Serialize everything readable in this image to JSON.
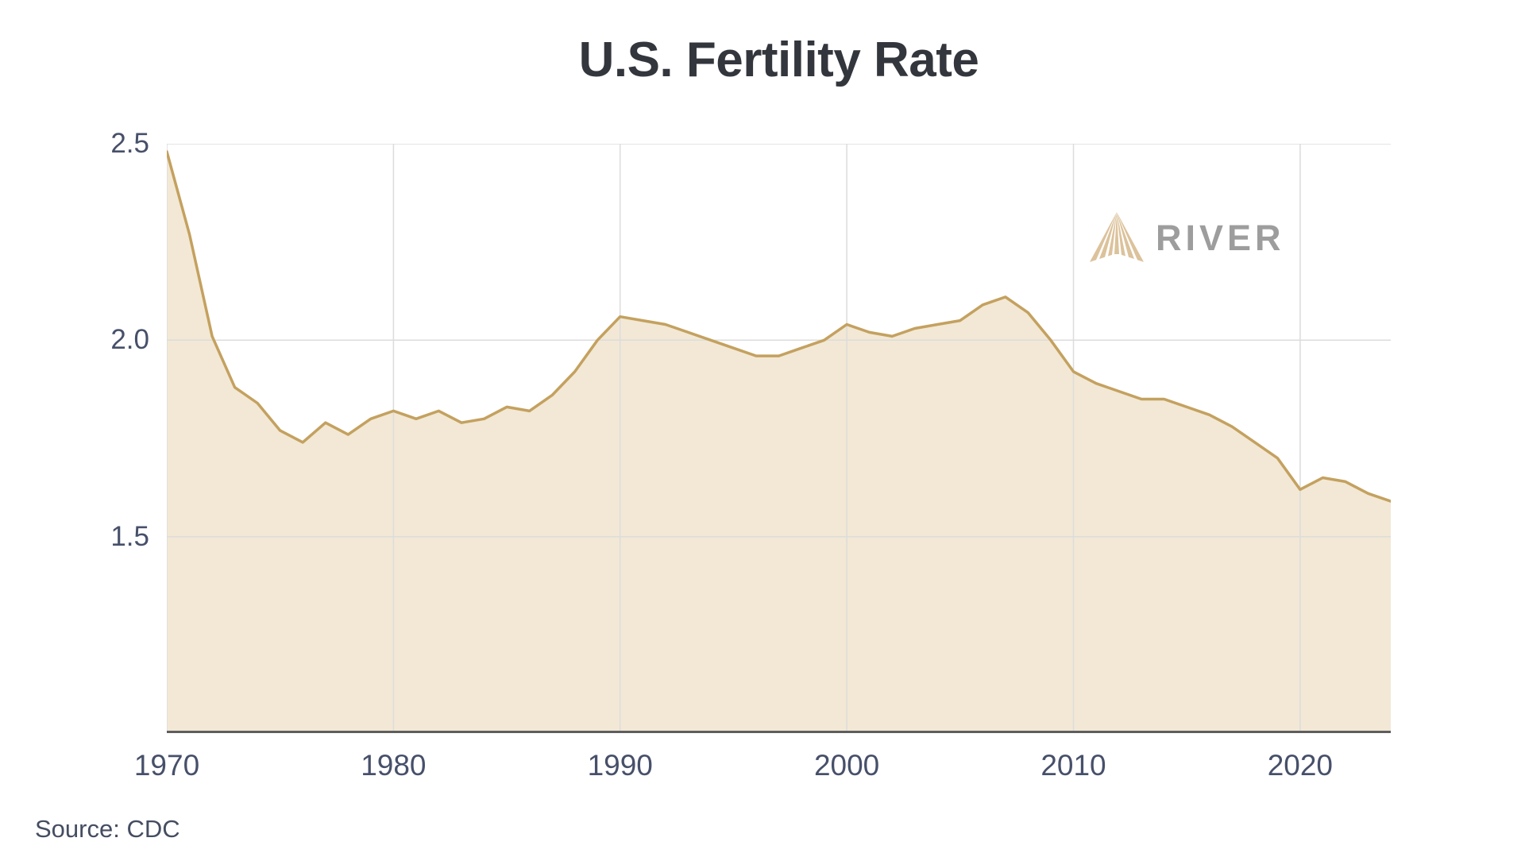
{
  "title": "U.S. Fertility Rate",
  "source": "Source: CDC",
  "branding": {
    "name": "RIVER",
    "icon": "river-fan-icon"
  },
  "colors": {
    "line": "#c4a15f",
    "fill": "#f2e8d5",
    "grid": "#dcdcdc",
    "bottom_axis": "#5e5e5e",
    "tick_text": "#47506a",
    "title_text": "#33363c",
    "brand_text": "#9d9d9d",
    "brand_icon": "#dcc29b",
    "background": "#ffffff"
  },
  "chart_data": {
    "type": "area",
    "title": "U.S. Fertility Rate",
    "xlabel": "",
    "ylabel": "",
    "source": "Source: CDC",
    "xlim": [
      1970,
      2024
    ],
    "ylim": [
      1.0,
      2.5
    ],
    "x_ticks": [
      1970,
      1980,
      1990,
      2000,
      2010,
      2020
    ],
    "y_ticks": [
      2.5,
      2.0,
      1.5
    ],
    "grid": true,
    "legend": "none",
    "x": [
      1970,
      1971,
      1972,
      1973,
      1974,
      1975,
      1976,
      1977,
      1978,
      1979,
      1980,
      1981,
      1982,
      1983,
      1984,
      1985,
      1986,
      1987,
      1988,
      1989,
      1990,
      1991,
      1992,
      1993,
      1994,
      1995,
      1996,
      1997,
      1998,
      1999,
      2000,
      2001,
      2002,
      2003,
      2004,
      2005,
      2006,
      2007,
      2008,
      2009,
      2010,
      2011,
      2012,
      2013,
      2014,
      2015,
      2016,
      2017,
      2018,
      2019,
      2020,
      2021,
      2022,
      2023,
      2024
    ],
    "values": [
      2.48,
      2.27,
      2.01,
      1.88,
      1.84,
      1.77,
      1.74,
      1.79,
      1.76,
      1.8,
      1.82,
      1.8,
      1.82,
      1.79,
      1.8,
      1.83,
      1.82,
      1.86,
      1.92,
      2.0,
      2.06,
      2.05,
      2.04,
      2.02,
      2.0,
      1.98,
      1.96,
      1.96,
      1.98,
      2.0,
      2.04,
      2.02,
      2.01,
      2.03,
      2.04,
      2.05,
      2.09,
      2.11,
      2.07,
      2.0,
      1.92,
      1.89,
      1.87,
      1.85,
      1.85,
      1.83,
      1.81,
      1.78,
      1.74,
      1.7,
      1.62,
      1.65,
      1.64,
      1.61,
      1.59
    ]
  }
}
